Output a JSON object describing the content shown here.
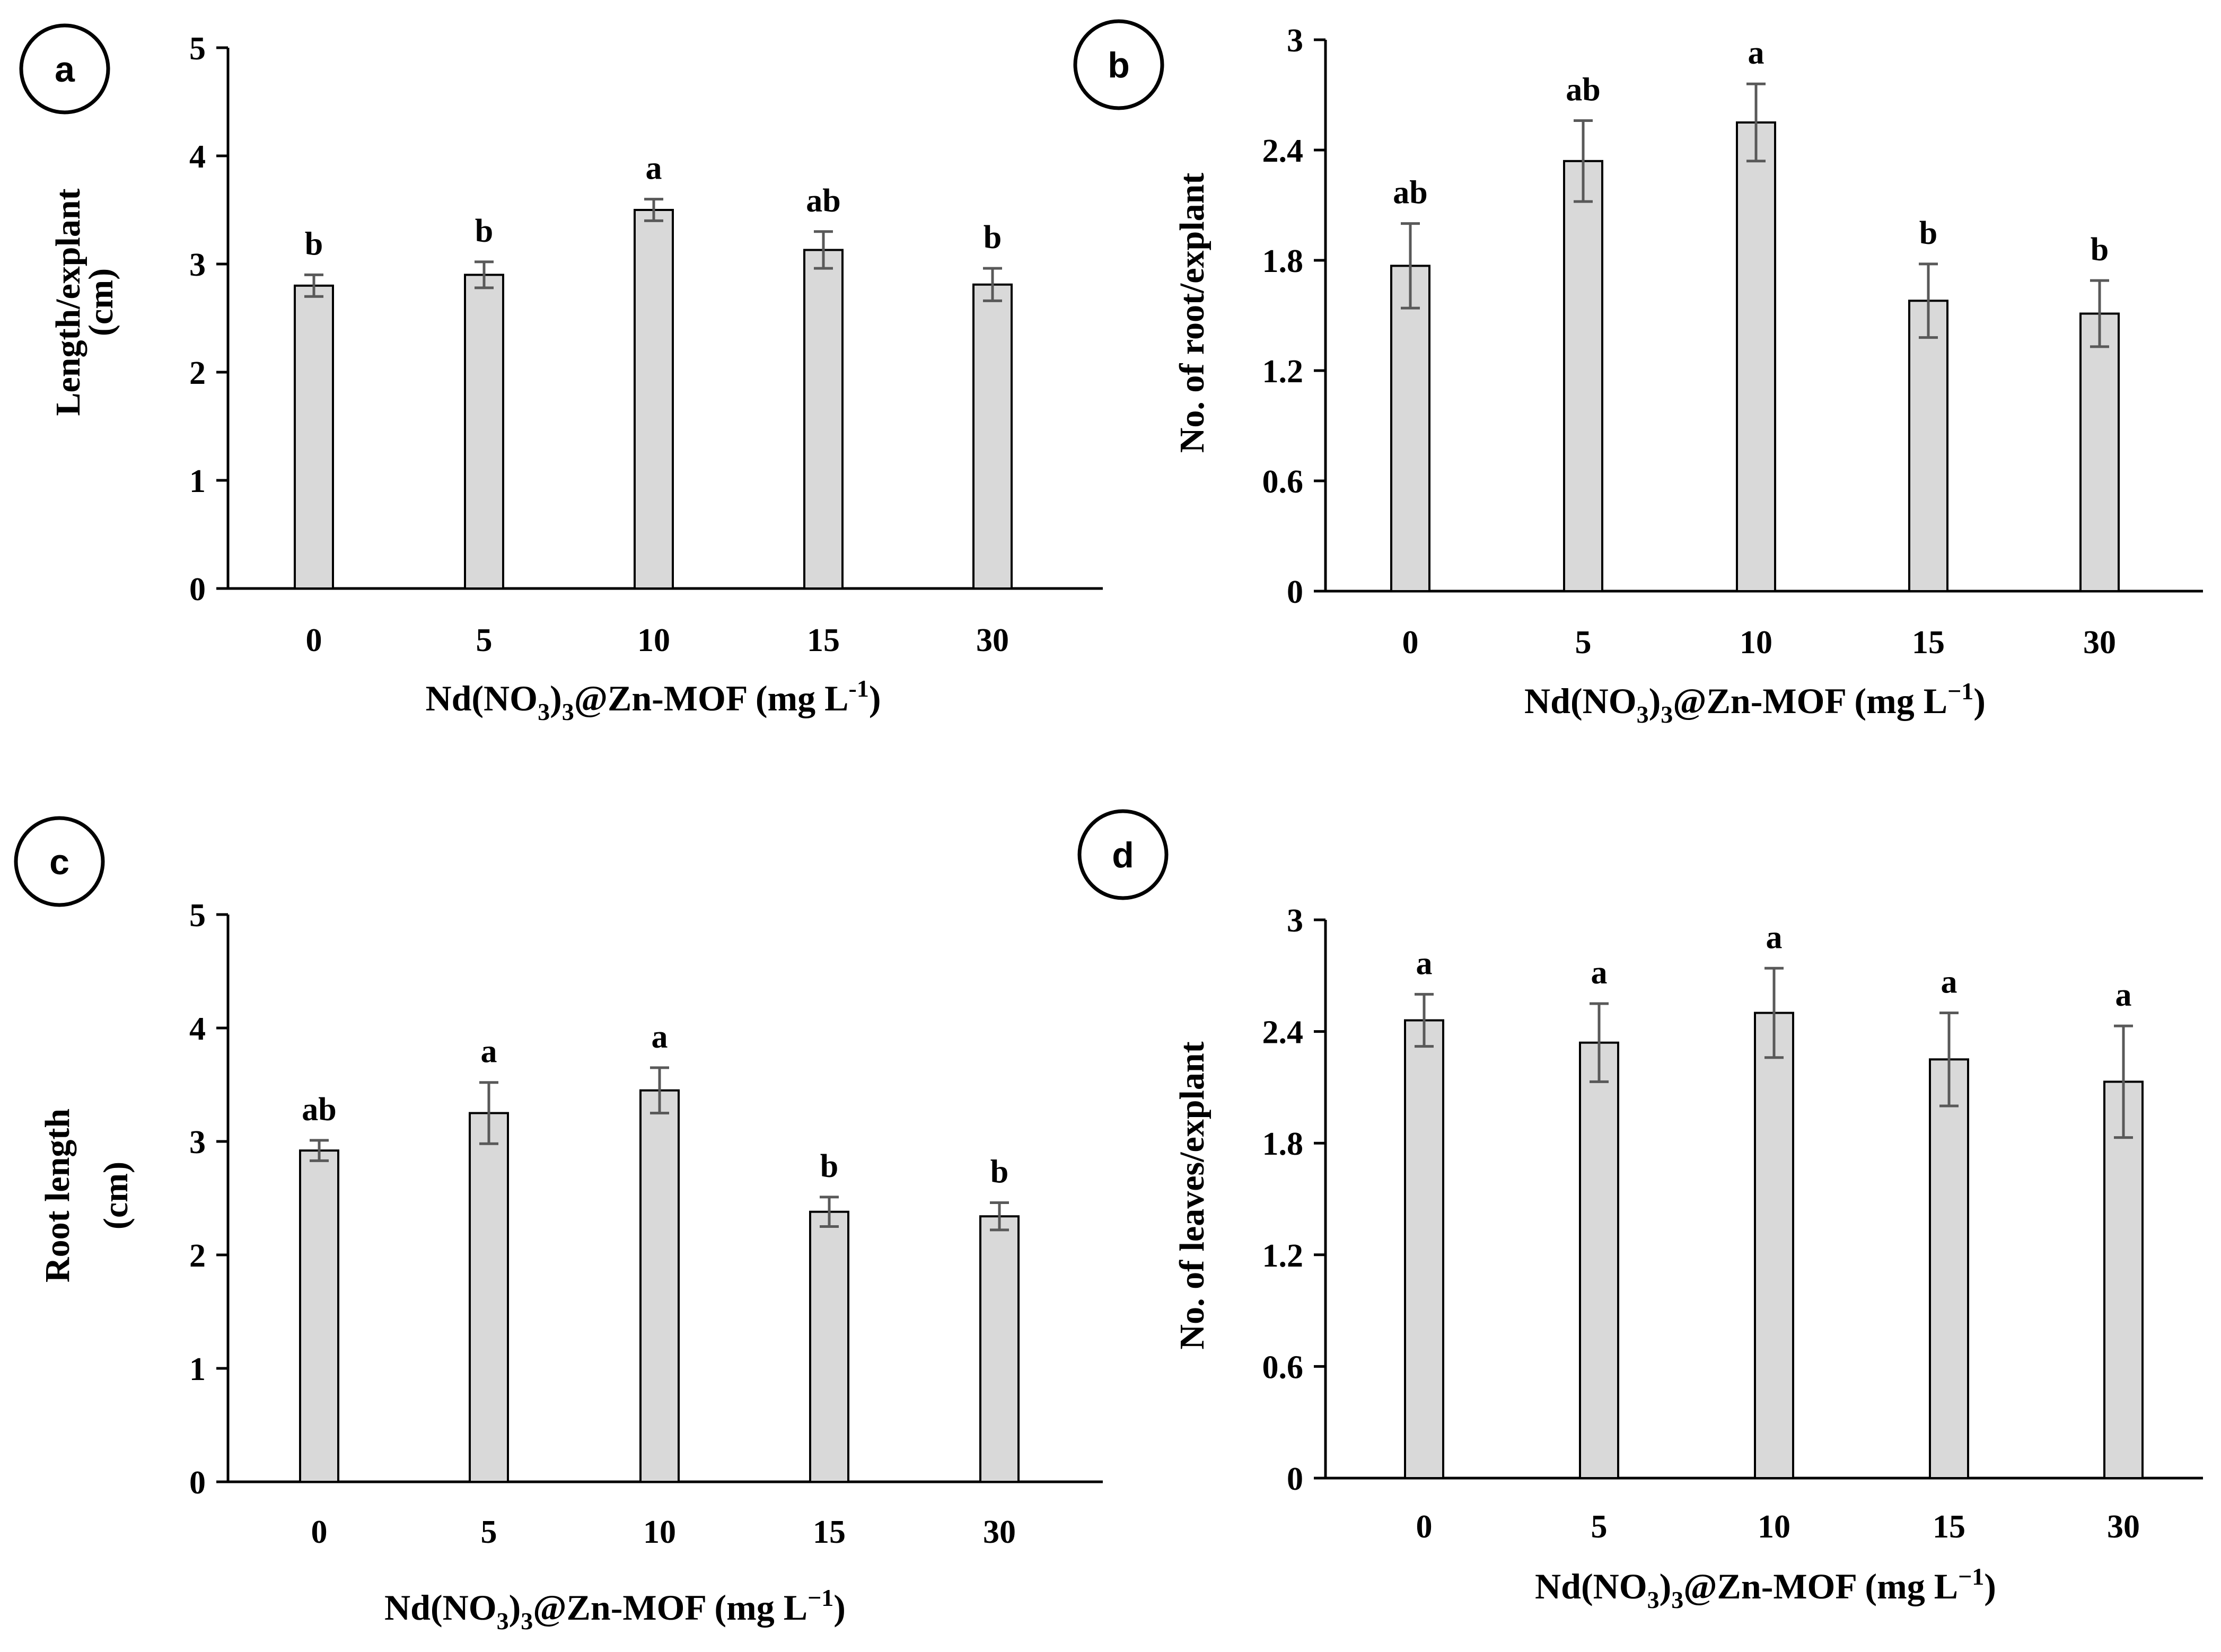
{
  "chart_data": [
    {
      "panel": "a",
      "type": "bar",
      "categories": [
        "0",
        "5",
        "10",
        "15",
        "30"
      ],
      "values": [
        2.8,
        2.9,
        3.5,
        3.13,
        2.81
      ],
      "errors": [
        0.1,
        0.12,
        0.1,
        0.17,
        0.15
      ],
      "significance": [
        "b",
        "b",
        "a",
        "ab",
        "b"
      ],
      "ylabel": [
        "Length/explant",
        "(cm)"
      ],
      "xlabel": {
        "main": "Nd(NO",
        "sub1": "3",
        "mid": ")",
        "sub2": "3",
        "tail": "@Zn-MOF (mg L",
        "sup": "-1",
        "close": ")"
      },
      "ylim": [
        0,
        5
      ],
      "yticks": [
        "0",
        "1",
        "2",
        "3",
        "4",
        "5"
      ],
      "grid": false
    },
    {
      "panel": "b",
      "type": "bar",
      "categories": [
        "0",
        "5",
        "10",
        "15",
        "30"
      ],
      "values": [
        1.77,
        2.34,
        2.55,
        1.58,
        1.51
      ],
      "errors": [
        0.23,
        0.22,
        0.21,
        0.2,
        0.18
      ],
      "significance": [
        "ab",
        "ab",
        "a",
        "b",
        "b"
      ],
      "ylabel": [
        "No. of root/explant"
      ],
      "xlabel": {
        "main": "Nd(NO",
        "sub1": "3",
        "mid": ")",
        "sub2": "3",
        "tail": "@Zn-MOF (mg L",
        "sup": "−1",
        "close": ")"
      },
      "ylim": [
        0,
        3
      ],
      "yticks": [
        "0",
        "0.6",
        "1.2",
        "1.8",
        "2.4",
        "3"
      ],
      "grid": false
    },
    {
      "panel": "c",
      "type": "bar",
      "categories": [
        "0",
        "5",
        "10",
        "15",
        "30"
      ],
      "values": [
        2.92,
        3.25,
        3.45,
        2.38,
        2.34
      ],
      "errors": [
        0.09,
        0.27,
        0.2,
        0.13,
        0.12
      ],
      "significance": [
        "ab",
        "a",
        "a",
        "b",
        "b"
      ],
      "ylabel": [
        "Root length",
        "(cm)"
      ],
      "xlabel": {
        "main": "Nd(NO",
        "sub1": "3",
        "mid": ")",
        "sub2": "3",
        "tail": "@Zn-MOF (mg L",
        "sup": "−1",
        "close": ")"
      },
      "ylim": [
        0,
        5
      ],
      "yticks": [
        "0",
        "1",
        "2",
        "3",
        "4",
        "5"
      ],
      "grid": false
    },
    {
      "panel": "d",
      "type": "bar",
      "categories": [
        "0",
        "5",
        "10",
        "15",
        "30"
      ],
      "values": [
        2.46,
        2.34,
        2.5,
        2.25,
        2.13
      ],
      "errors": [
        0.14,
        0.21,
        0.24,
        0.25,
        0.3
      ],
      "significance": [
        "a",
        "a",
        "a",
        "a",
        "a"
      ],
      "ylabel": [
        "No. of leaves/explant"
      ],
      "xlabel": {
        "main": "Nd(NO",
        "sub1": "3",
        "mid": ")",
        "sub2": "3",
        "tail": "@Zn-MOF (mg L",
        "sup": "−1",
        "close": ")"
      },
      "ylim": [
        0,
        3
      ],
      "yticks": [
        "0",
        "0.6",
        "1.2",
        "1.8",
        "2.4",
        "3"
      ],
      "grid": false
    }
  ],
  "colors": {
    "bar_fill": "#d9d9d9",
    "bar_stroke": "#000000",
    "error_bar": "#595959",
    "axis": "#000000",
    "text": "#000000"
  }
}
